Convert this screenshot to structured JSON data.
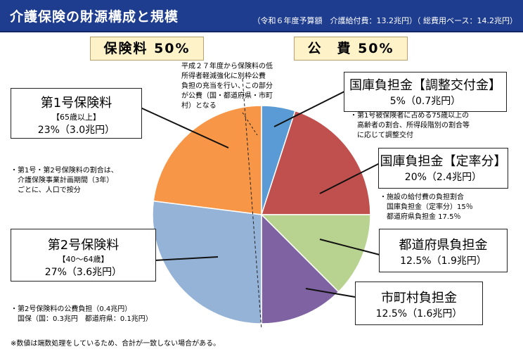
{
  "header": {
    "title": "介護保険の財源構成と規模",
    "subtitle": "（令和６年度予算額　介護給付費：13.2兆円）（ 総費用ベース：14.2兆円）"
  },
  "bands": {
    "insurance": "保険料 50%",
    "public": "公　費 50%"
  },
  "colors": {
    "header": "#1f3d8f",
    "band_fill": "#fdf2c8"
  },
  "chart_data": {
    "type": "pie",
    "unit": "%",
    "slices": [
      {
        "label": "国庫負担金【調整交付金】",
        "value": 5,
        "amount": "0.7兆円",
        "color": "#5b9bd5"
      },
      {
        "label": "国庫負担金【定率分】",
        "value": 20,
        "amount": "2.4兆円",
        "color": "#c0504d"
      },
      {
        "label": "都道府県負担金",
        "value": 12.5,
        "amount": "1.9兆円",
        "color": "#b8d28f"
      },
      {
        "label": "市町村負担金",
        "value": 12.5,
        "amount": "1.6兆円",
        "color": "#7e62a1"
      },
      {
        "label": "第2号保険料",
        "value": 27,
        "amount": "3.6兆円",
        "color": "#95b3d7"
      },
      {
        "label": "第1号保険料",
        "value": 23,
        "amount": "3.0兆円",
        "color": "#f79646"
      }
    ]
  },
  "boxes": {
    "kokko_chosei": {
      "name": "国庫負担金【調整交付金】",
      "value": "5%（0.7兆円）"
    },
    "kokko_teiritsu": {
      "name": "国庫負担金【定率分】",
      "value": "20%（2.4兆円）"
    },
    "todofuken": {
      "name": "都道府県負担金",
      "value": "12.5%（1.9兆円）"
    },
    "shichoson": {
      "name": "市町村負担金",
      "value": "12.5%（1.6兆円）"
    },
    "dai2": {
      "name": "第2号保険料",
      "age": "【40～64歳】",
      "value": "27%（3.6兆円）"
    },
    "dai1": {
      "name": "第1号保険料",
      "age": "【65歳以上】",
      "value": "23%（3.0兆円）"
    }
  },
  "notes": {
    "top_note": [
      "平成２７年度から保険料の低",
      "所得者軽減強化に別枠公費",
      "負担の充当を行い、この部分",
      "が公費（国・都道府県・市町",
      "村）となる"
    ],
    "chosei_note": [
      "・第1号被保険者に占める75歳以上の",
      "　高齢者の割合、所得段階別の割合等",
      "　に応じて調整交付"
    ],
    "teiritsu_note": [
      "・施設の給付費の負担割合",
      "　国庫負担金（定率分）15％",
      "　都道府県負担金 17.5％"
    ],
    "ratio_note": [
      "・第1号・第2号保険料の割合は、",
      "　介護保険事業計画期間（3年）",
      "　ごとに、人口で按分"
    ],
    "dai2_public_note": [
      "・第2号保険料の公費負担（0.4兆円）",
      "　国保（国：0.3兆円　都道府県：0.1兆円）"
    ],
    "footnote": "※数値は端数処理をしているため、合計が一致しない場合がある。"
  }
}
